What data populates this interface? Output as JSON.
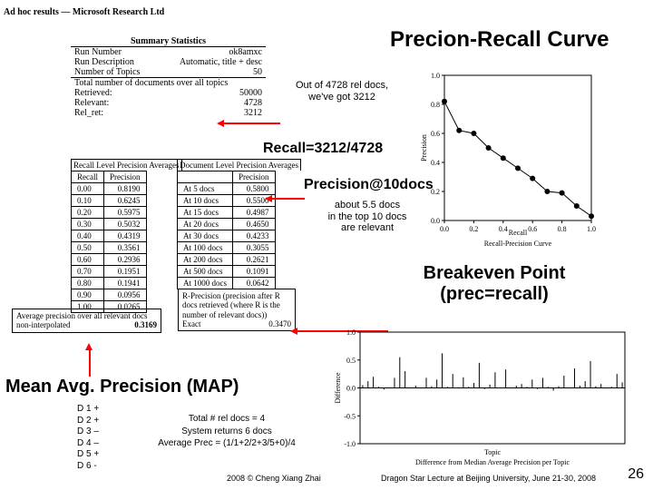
{
  "header": "Ad hoc results — Microsoft Research Ltd",
  "title": "Precion-Recall Curve",
  "summary": {
    "heading": "Summary Statistics",
    "rows": [
      [
        "Run Number",
        "ok8amxc"
      ],
      [
        "Run Description",
        "Automatic, title + desc"
      ],
      [
        "Number of Topics",
        "50"
      ]
    ],
    "subhead": "Total number of documents over all topics",
    "totals": [
      [
        "Retrieved:",
        "50000"
      ],
      [
        "Relevant:",
        "4728"
      ],
      [
        "Rel_ret:",
        "3212"
      ]
    ]
  },
  "recall_prec": {
    "heading": "Recall Level Precision Averages",
    "columns": [
      "Recall",
      "Precision"
    ],
    "rows": [
      [
        "0.00",
        "0.8190"
      ],
      [
        "0.10",
        "0.6245"
      ],
      [
        "0.20",
        "0.5975"
      ],
      [
        "0.30",
        "0.5032"
      ],
      [
        "0.40",
        "0.4319"
      ],
      [
        "0.50",
        "0.3561"
      ],
      [
        "0.60",
        "0.2936"
      ],
      [
        "0.70",
        "0.1951"
      ],
      [
        "0.80",
        "0.1941"
      ],
      [
        "0.90",
        "0.0956"
      ],
      [
        "1.00",
        "0.0265"
      ]
    ],
    "map_label": "Average precision over all relevant docs\nnon-interpolated",
    "map_value": "0.3169"
  },
  "doc_prec": {
    "heading": "Document Level Precision Averages",
    "columns": [
      "",
      "Precision"
    ],
    "rows": [
      [
        "At 5 docs",
        "0.5800"
      ],
      [
        "At 10 docs",
        "0.5500"
      ],
      [
        "At 15 docs",
        "0.4987"
      ],
      [
        "At 20 docs",
        "0.4650"
      ],
      [
        "At 30 docs",
        "0.4233"
      ],
      [
        "At 100 docs",
        "0.3055"
      ],
      [
        "At 200 docs",
        "0.2621"
      ],
      [
        "At 500 docs",
        "0.1091"
      ],
      [
        "At 1000 docs",
        "0.0642"
      ]
    ],
    "rprec_label": "R-Precision (precision after R docs retrieved (where R is the number of relevant docs))",
    "rprec_value_label": "Exact",
    "rprec_value": "0.3470"
  },
  "annotations": {
    "callout1": "Out of 4728 rel docs,\nwe've got 3212",
    "recall": "Recall=3212/4728",
    "p10": "Precision@10docs",
    "p10_detail": "about 5.5 docs\nin the top 10 docs\nare relevant",
    "bep_line1": "Breakeven Point",
    "bep_line2": "(prec=recall)",
    "map": "Mean Avg. Precision (MAP)"
  },
  "map_example": {
    "rows": [
      "D 1 +",
      "D 2 +",
      "D 3 –",
      "D 4 –",
      "D 5 +",
      "D 6 -"
    ],
    "lines": [
      "Total # rel docs = 4",
      "System returns 6 docs",
      "Average Prec = (1/1+2/2+3/5+0)/4"
    ]
  },
  "pr_chart": {
    "type": "line",
    "xlabel": "Recall",
    "ylabel": "Precision",
    "caption": "Recall-Precision Curve",
    "xlim": [
      0,
      1
    ],
    "ylim": [
      0,
      1
    ],
    "xticks": [
      0,
      0.2,
      0.4,
      0.6,
      0.8,
      1.0
    ],
    "yticks": [
      0,
      0.2,
      0.4,
      0.6,
      0.8,
      1.0
    ],
    "points": [
      [
        0,
        0.82
      ],
      [
        0.1,
        0.62
      ],
      [
        0.2,
        0.6
      ],
      [
        0.3,
        0.5
      ],
      [
        0.4,
        0.43
      ],
      [
        0.5,
        0.36
      ],
      [
        0.6,
        0.29
      ],
      [
        0.7,
        0.2
      ],
      [
        0.8,
        0.19
      ],
      [
        0.9,
        0.1
      ],
      [
        1.0,
        0.03
      ]
    ],
    "line_color": "#000000",
    "line_width": 1,
    "marker": "circle",
    "marker_size": 3,
    "axis_color": "#000000",
    "background_color": "#ffffff",
    "font_size": 8
  },
  "diff_chart": {
    "type": "bar-impulse",
    "ylabel": "Difference",
    "xlabel": "Topic",
    "caption": "Difference from Median Average Precision per Topic",
    "ylim": [
      -1.0,
      1.0
    ],
    "yticks": [
      -1.0,
      -0.5,
      0.0,
      0.5,
      1.0
    ],
    "line_color": "#000000",
    "background_color": "#ffffff",
    "font_size": 8,
    "values": [
      0.05,
      0.12,
      0.2,
      0.02,
      -0.03,
      0.01,
      0.18,
      0.55,
      0.3,
      0.01,
      0.04,
      -0.01,
      0.18,
      0.03,
      0.15,
      0.62,
      0.02,
      0.25,
      0.01,
      0.19,
      0.02,
      0.09,
      0.45,
      -0.02,
      0.06,
      0.28,
      0.0,
      0.33,
      -0.01,
      0.04,
      0.07,
      0.02,
      0.15,
      -0.02,
      0.18,
      0.02,
      -0.05,
      0.03,
      0.22,
      0.01,
      0.35,
      0.04,
      0.12,
      0.48,
      0.03,
      0.07,
      -0.01,
      0.02,
      0.25,
      0.1
    ]
  },
  "footer": {
    "left": "2008 © Cheng Xiang Zhai",
    "right": "Dragon Star Lecture at Beijing University, June 21-30, 2008",
    "pageno": "26"
  },
  "colors": {
    "accent": "#ff0000",
    "text": "#000000",
    "bg": "#ffffff"
  }
}
